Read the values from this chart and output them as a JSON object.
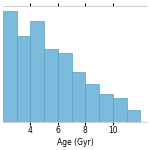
{
  "title": "",
  "xlabel": "Age (Gyr)",
  "ylabel": "",
  "bar_color": "#7bbcde",
  "bar_edgecolor": "#5a9fc0",
  "background_color": "#ffffff",
  "xlim": [
    2.0,
    12.5
  ],
  "ylim": [
    0,
    115
  ],
  "bin_edges": [
    2,
    3,
    4,
    5,
    6,
    7,
    8,
    9,
    10,
    11,
    12
  ],
  "counts": [
    110,
    85,
    100,
    72,
    68,
    50,
    38,
    28,
    24,
    12
  ],
  "xticks": [
    4,
    6,
    8,
    10
  ],
  "yticks": [],
  "tick_fontsize": 5.5,
  "xlabel_fontsize": 5.5,
  "figsize": [
    1.5,
    1.5
  ],
  "dpi": 100
}
